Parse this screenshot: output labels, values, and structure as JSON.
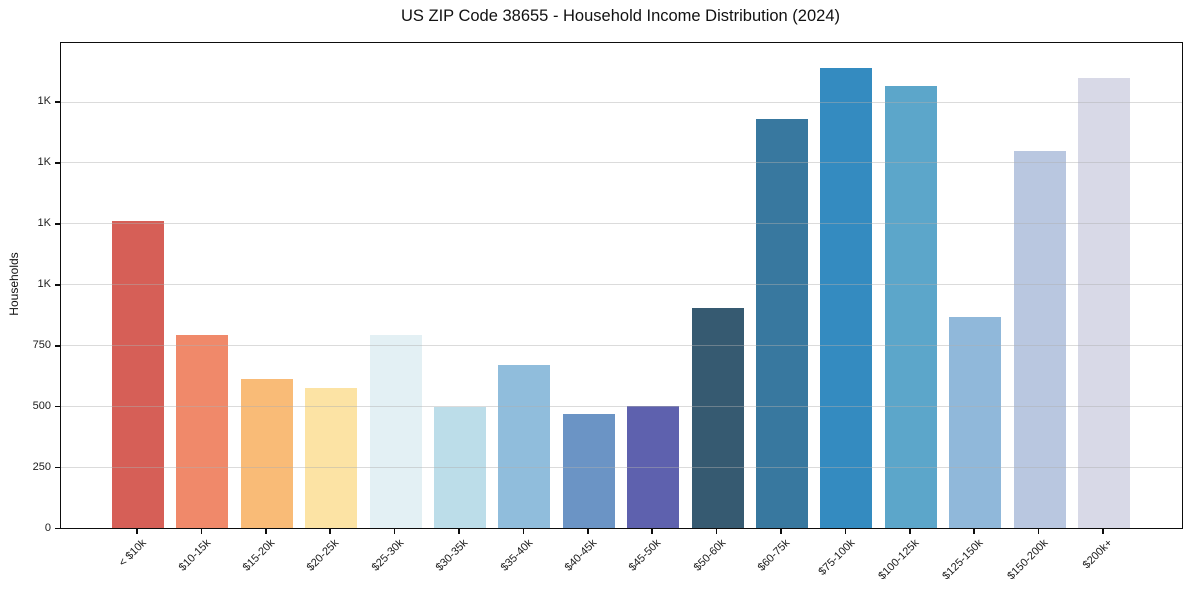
{
  "chart_data": {
    "type": "bar",
    "title": "US ZIP Code 38655 - Household Income Distribution (2024)",
    "xlabel": "",
    "ylabel": "Households",
    "categories": [
      "< $10k",
      "$10-15k",
      "$15-20k",
      "$20-25k",
      "$25-30k",
      "$30-35k",
      "$35-40k",
      "$40-45k",
      "$45-50k",
      "$50-60k",
      "$60-75k",
      "$75-100k",
      "$100-125k",
      "$125-150k",
      "$150-200k",
      "$200k+"
    ],
    "values": [
      1261,
      791,
      613,
      575,
      794,
      495,
      667,
      468,
      502,
      903,
      1679,
      1888,
      1815,
      868,
      1549,
      1846
    ],
    "bar_colors": [
      "#d65f57",
      "#f0896a",
      "#f9bb77",
      "#fce3a4",
      "#e3f0f4",
      "#bcdde9",
      "#90bddc",
      "#6b94c5",
      "#5e61ae",
      "#365a71",
      "#38789f",
      "#348bc0",
      "#5ca6ca",
      "#90b8da",
      "#b9c7e0",
      "#d8d9e7"
    ],
    "ylim": [
      0,
      1990
    ],
    "yticks": [
      {
        "value": 0,
        "label": "0"
      },
      {
        "value": 250,
        "label": "250"
      },
      {
        "value": 500,
        "label": "500"
      },
      {
        "value": 750,
        "label": "750"
      },
      {
        "value": 1000,
        "label": "1K"
      },
      {
        "value": 1250,
        "label": "1K"
      },
      {
        "value": 1500,
        "label": "1K"
      },
      {
        "value": 1750,
        "label": "1K"
      }
    ],
    "grid": "horizontal-above-bars",
    "legend": "none",
    "background_color": "#ffffff",
    "spine_color": "#0d0d0d",
    "grid_color": "#b0b0b0"
  }
}
